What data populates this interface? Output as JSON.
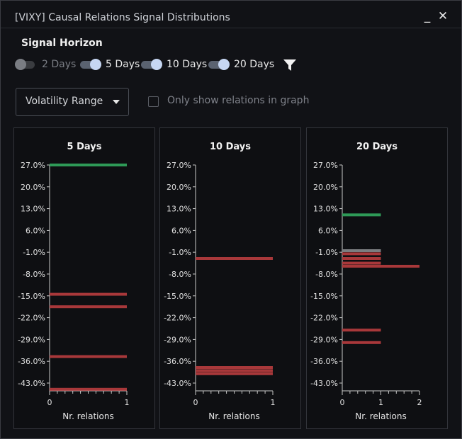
{
  "window": {
    "title": "[VIXY] Causal Relations Signal Distributions",
    "minimize_glyph": "_",
    "close_glyph": "✕"
  },
  "signal_horizon": {
    "label": "Signal Horizon",
    "toggles": [
      {
        "label": "2 Days",
        "on": false
      },
      {
        "label": "5 Days",
        "on": true
      },
      {
        "label": "10 Days",
        "on": true
      },
      {
        "label": "20 Days",
        "on": true
      }
    ],
    "filter_icon": "funnel-icon"
  },
  "controls": {
    "dropdown_label": "Volatility Range",
    "checkbox_label": "Only show relations in graph",
    "checkbox_checked": false
  },
  "colors": {
    "positive": "#2e9a57",
    "negative": "#a8383a",
    "neutral": "#7b7d80"
  },
  "chart_data": [
    {
      "type": "bar",
      "orientation": "horizontal",
      "title": "5 Days",
      "xlabel": "Nr. relations",
      "xlim": [
        0,
        1
      ],
      "xticks": [
        "0",
        "1"
      ],
      "yticks": [
        "27.0%",
        "20.0%",
        "13.0%",
        "6.0%",
        "-1.0%",
        "-8.0%",
        "-15.0%",
        "-22.0%",
        "-29.0%",
        "-36.0%",
        "-43.0%"
      ],
      "ylim": [
        -45.5,
        27.0
      ],
      "bars": [
        {
          "y": 27.0,
          "count": 1,
          "sign": "positive"
        },
        {
          "y": -14.5,
          "count": 1,
          "sign": "negative"
        },
        {
          "y": -18.5,
          "count": 1,
          "sign": "negative"
        },
        {
          "y": -34.5,
          "count": 1,
          "sign": "negative"
        },
        {
          "y": -45.0,
          "count": 1,
          "sign": "negative"
        }
      ]
    },
    {
      "type": "bar",
      "orientation": "horizontal",
      "title": "10 Days",
      "xlabel": "Nr. relations",
      "xlim": [
        0,
        1
      ],
      "xticks": [
        "0",
        "1"
      ],
      "yticks": [
        "27.0%",
        "20.0%",
        "13.0%",
        "6.0%",
        "-1.0%",
        "-8.0%",
        "-15.0%",
        "-22.0%",
        "-29.0%",
        "-36.0%",
        "-43.0%"
      ],
      "ylim": [
        -45.5,
        27.0
      ],
      "bars": [
        {
          "y": -3.0,
          "count": 1,
          "sign": "negative"
        },
        {
          "y": -38.0,
          "count": 1,
          "sign": "negative"
        },
        {
          "y": -39.0,
          "count": 1,
          "sign": "negative"
        },
        {
          "y": -40.0,
          "count": 1,
          "sign": "negative"
        }
      ]
    },
    {
      "type": "bar",
      "orientation": "horizontal",
      "title": "20 Days",
      "xlabel": "Nr. relations",
      "xlim": [
        0,
        2
      ],
      "xticks": [
        "0",
        "1",
        "2"
      ],
      "yticks": [
        "27.0%",
        "20.0%",
        "13.0%",
        "6.0%",
        "-1.0%",
        "-8.0%",
        "-15.0%",
        "-22.0%",
        "-29.0%",
        "-36.0%",
        "-43.0%"
      ],
      "ylim": [
        -45.5,
        27.0
      ],
      "bars": [
        {
          "y": 11.0,
          "count": 1,
          "sign": "positive"
        },
        {
          "y": -0.5,
          "count": 1,
          "sign": "neutral"
        },
        {
          "y": -1.5,
          "count": 1,
          "sign": "negative"
        },
        {
          "y": -3.0,
          "count": 1,
          "sign": "negative"
        },
        {
          "y": -4.5,
          "count": 1,
          "sign": "negative"
        },
        {
          "y": -5.5,
          "count": 2,
          "sign": "negative"
        },
        {
          "y": -26.0,
          "count": 1,
          "sign": "negative"
        },
        {
          "y": -30.0,
          "count": 1,
          "sign": "negative"
        }
      ]
    }
  ]
}
